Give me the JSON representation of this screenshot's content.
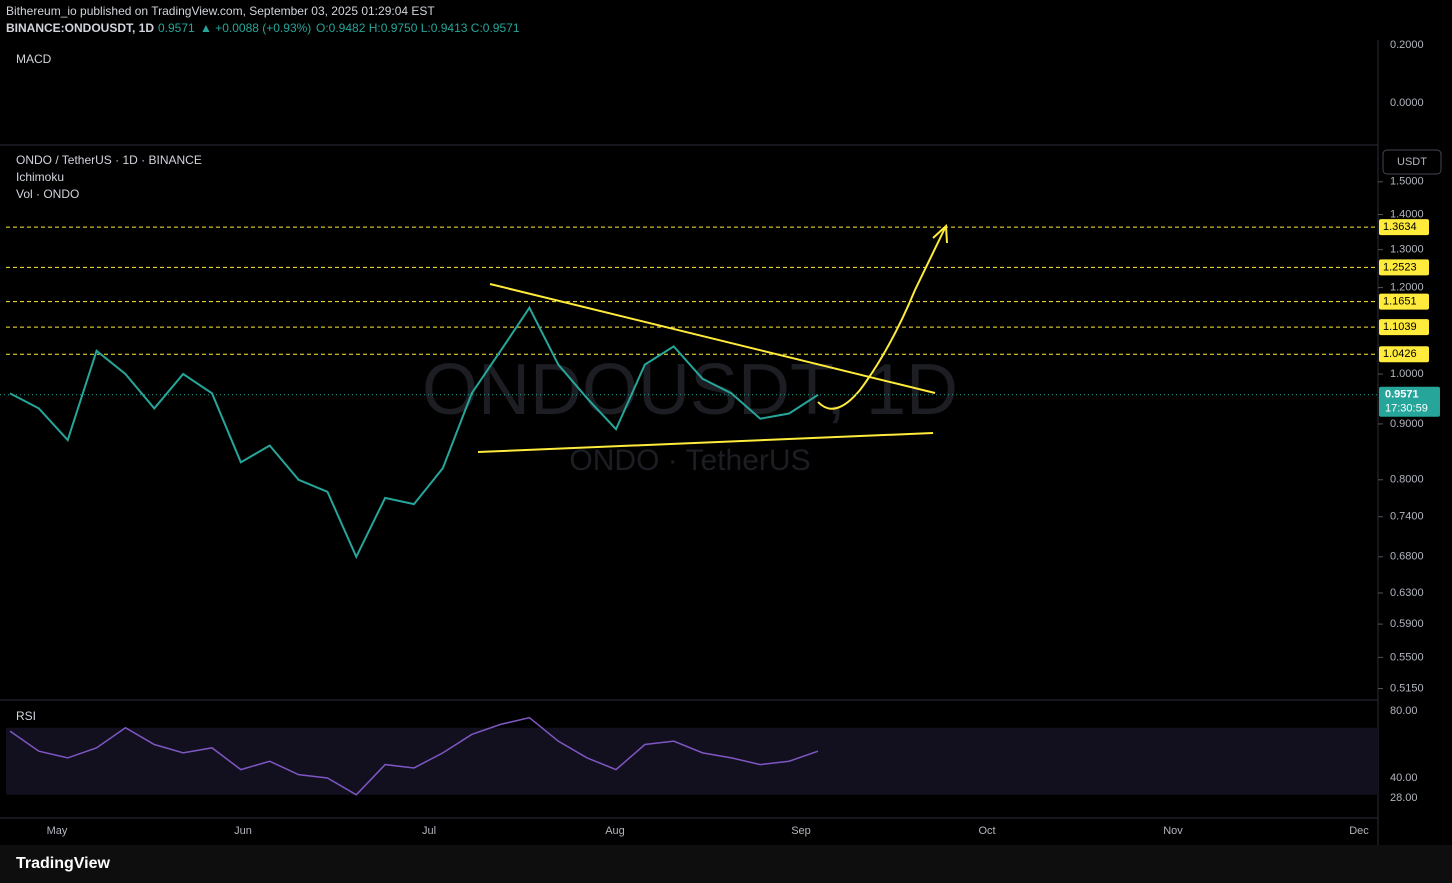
{
  "header": {
    "publisher": "Bithereum_io published on TradingView.com, September 03, 2025 01:29:04 EST",
    "symbol": "BINANCE:ONDOUSDT, 1D",
    "last": "0.9571",
    "change": "▲ +0.0088 (+0.93%)",
    "ohlc": "O:0.9482 H:0.9750 L:0.9413 C:0.9571"
  },
  "panes": {
    "macd": "MACD",
    "main": "ONDO / TetherUS · 1D · BINANCE",
    "ichimoku": "Ichimoku",
    "volume": "Vol · ONDO",
    "rsi": "RSI",
    "currency": "USDT"
  },
  "watermark": {
    "symbol": "ONDOUSDT, 1D",
    "pair": "ONDO · TetherUS"
  },
  "price_axis": {
    "ticks": [
      {
        "value": 1.5,
        "label": "1.5000"
      },
      {
        "value": 1.4,
        "label": "1.4000"
      },
      {
        "value": 1.3,
        "label": "1.3000"
      },
      {
        "value": 1.2,
        "label": "1.2000"
      },
      {
        "value": 1.0,
        "label": "1.0000"
      },
      {
        "value": 0.9,
        "label": "0.9000"
      },
      {
        "value": 0.8,
        "label": "0.8000"
      },
      {
        "value": 0.74,
        "label": "0.7400"
      },
      {
        "value": 0.68,
        "label": "0.6800"
      },
      {
        "value": 0.63,
        "label": "0.6300"
      },
      {
        "value": 0.59,
        "label": "0.5900"
      },
      {
        "value": 0.55,
        "label": "0.5500"
      },
      {
        "value": 0.515,
        "label": "0.5150"
      }
    ]
  },
  "levels": [
    {
      "value": 1.3634,
      "label": "1.3634"
    },
    {
      "value": 1.2523,
      "label": "1.2523"
    },
    {
      "value": 1.1651,
      "label": "1.1651"
    },
    {
      "value": 1.1039,
      "label": "1.1039"
    },
    {
      "value": 1.0426,
      "label": "1.0426"
    }
  ],
  "current": {
    "value": 0.9571,
    "label": "0.9571",
    "countdown": "17:30:59"
  },
  "price_closes": [
    0.96,
    0.93,
    0.87,
    1.05,
    1.0,
    0.93,
    1.0,
    0.96,
    0.83,
    0.86,
    0.8,
    0.78,
    0.68,
    0.77,
    0.76,
    0.82,
    0.96,
    1.05,
    1.15,
    1.02,
    0.95,
    0.89,
    1.02,
    1.06,
    0.99,
    0.96,
    0.91,
    0.92,
    0.9571
  ],
  "macd_axis": {
    "ticks": [
      {
        "value": 0.2,
        "label": "0.2000"
      },
      {
        "value": 0,
        "label": "0.0000"
      }
    ]
  },
  "rsi_axis": {
    "ticks": [
      {
        "value": 80,
        "label": "80.00"
      },
      {
        "value": 40,
        "label": "40.00"
      },
      {
        "value": 28,
        "label": "28.00"
      }
    ]
  },
  "rsi_values": [
    68,
    56,
    52,
    58,
    70,
    60,
    55,
    58,
    45,
    50,
    42,
    40,
    30,
    48,
    46,
    55,
    66,
    72,
    76,
    62,
    52,
    45,
    60,
    62,
    55,
    52,
    48,
    50,
    56
  ],
  "months": [
    "May",
    "Jun",
    "Jul",
    "Aug",
    "Sep",
    "Oct",
    "Nov",
    "Dec"
  ],
  "footer": "TradingView"
}
